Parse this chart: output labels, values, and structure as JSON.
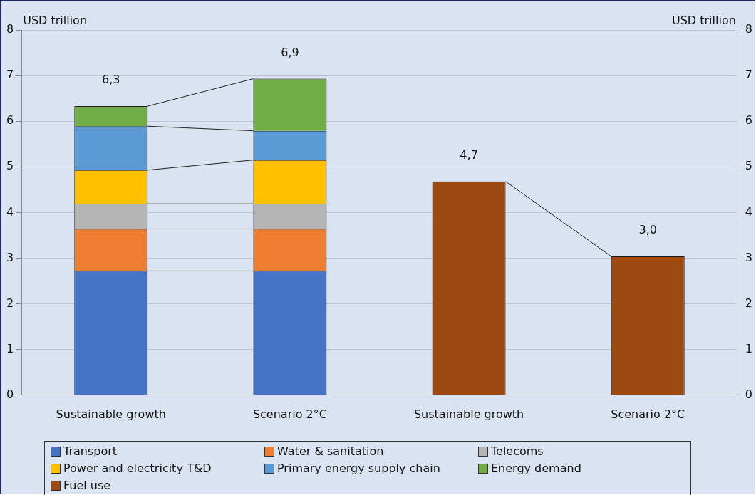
{
  "chart_data": {
    "type": "bar",
    "stacked": true,
    "ylabel": "USD trillion",
    "y2label": "USD trillion",
    "categories": [
      "Sustainable growth",
      "Scenario 2°C",
      "Sustainable growth",
      "Scenario 2°C"
    ],
    "series": [
      {
        "name": "Transport",
        "color": "#4472c4",
        "values": [
          2.72,
          2.72,
          null,
          null
        ]
      },
      {
        "name": "Water & sanitation",
        "color": "#ed7d31",
        "values": [
          0.92,
          0.92,
          null,
          null
        ]
      },
      {
        "name": "Telecoms",
        "color": "#b4b4b4",
        "values": [
          0.55,
          0.55,
          null,
          null
        ]
      },
      {
        "name": "Power and electricity T&D",
        "color": "#ffc000",
        "values": [
          0.74,
          0.96,
          null,
          null
        ]
      },
      {
        "name": "Primary energy supply chain",
        "color": "#5b9bd5",
        "values": [
          0.96,
          0.64,
          null,
          null
        ]
      },
      {
        "name": "Energy demand",
        "color": "#70ad47",
        "values": [
          0.44,
          1.14,
          null,
          null
        ]
      },
      {
        "name": "Fuel use",
        "color": "#9c4a0f",
        "values": [
          null,
          null,
          4.68,
          3.04
        ]
      }
    ],
    "totals": [
      "6,3",
      "6,9",
      "4,7",
      "3,0"
    ],
    "ylim": [
      0,
      8
    ],
    "yticks": [
      0,
      1,
      2,
      3,
      4,
      5,
      6,
      7,
      8
    ],
    "y2lim": [
      0,
      8
    ],
    "y2ticks": [
      0,
      1,
      2,
      3,
      4,
      5,
      6,
      7,
      8
    ],
    "grid": "y",
    "legend": "bottom"
  }
}
